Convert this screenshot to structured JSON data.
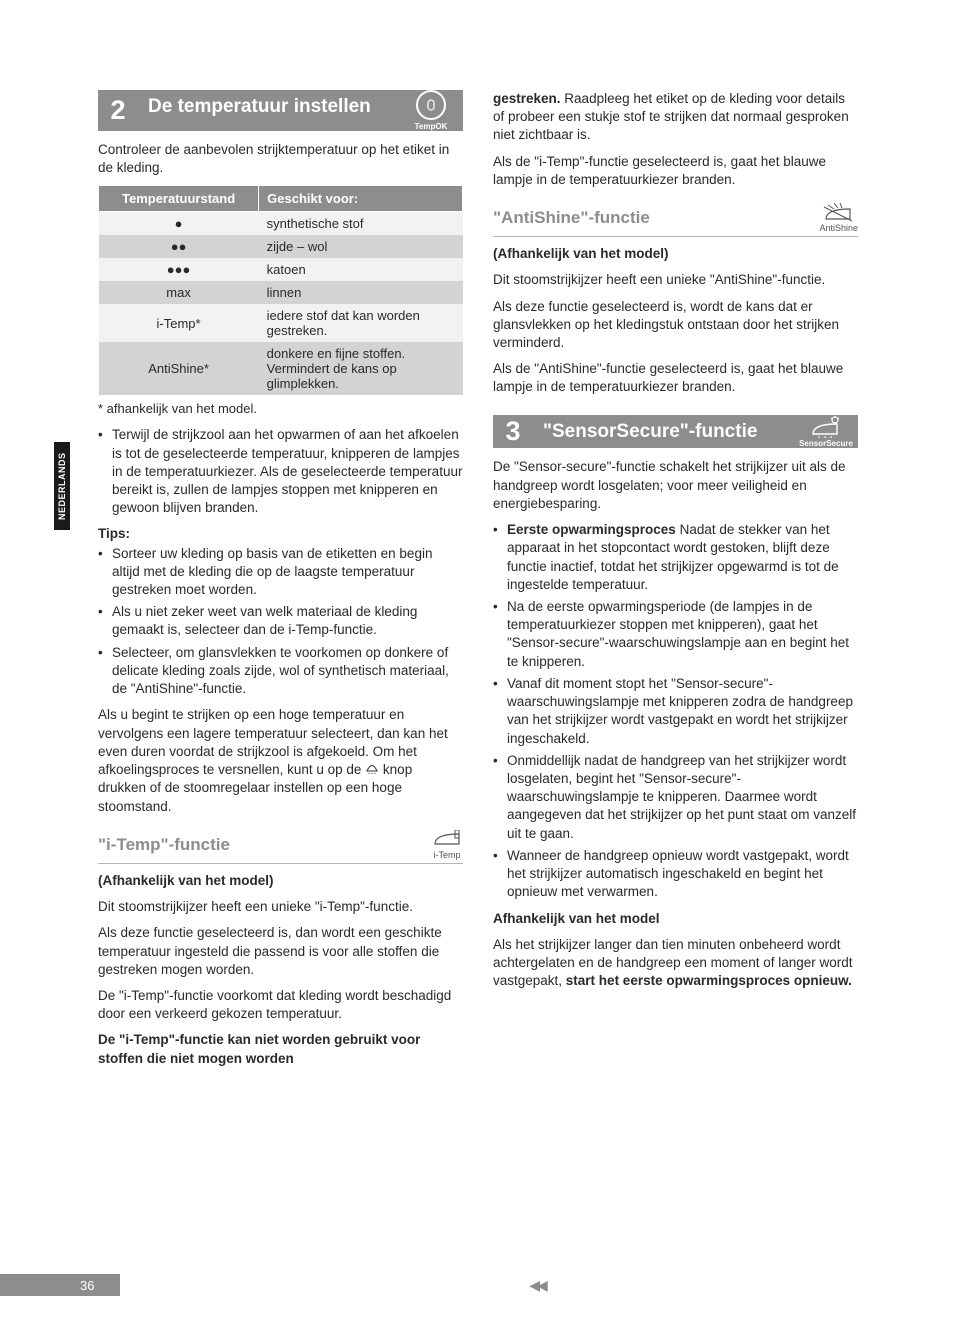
{
  "language_tab": "NEDERLANDS",
  "page_number": "36",
  "footer_arrows": "◀◀",
  "left": {
    "section": {
      "number": "2",
      "title": "De temperatuur instellen",
      "icon_label": "TempOK"
    },
    "intro": "Controleer de aanbevolen strijktemperatuur op het etiket in de kleding.",
    "table": {
      "headers": [
        "Temperatuurstand",
        "Geschikt voor:"
      ],
      "rows": [
        {
          "stand": "●",
          "desc": "synthetische stof",
          "shade": "light"
        },
        {
          "stand": "●●",
          "desc": "zijde – wol",
          "shade": "dark"
        },
        {
          "stand": "●●●",
          "desc": "katoen",
          "shade": "light"
        },
        {
          "stand": "max",
          "desc": "linnen",
          "shade": "dark"
        },
        {
          "stand": "i-Temp*",
          "desc": "iedere stof dat kan worden gestreken.",
          "shade": "light"
        },
        {
          "stand": "AntiShine*",
          "desc": "donkere en fijne stoffen. Vermindert de kans op glimplekken.",
          "shade": "dark"
        }
      ]
    },
    "footnote": "* afhankelijk van het model.",
    "bullet1": "Terwijl de strijkzool aan het opwarmen of aan het afkoelen is tot de geselecteerde temperatuur, knipperen de lampjes in de temperatuurkiezer. Als de geselecteerde temperatuur bereikt is, zullen de lampjes stoppen met knipperen en gewoon blijven branden.",
    "tips_label": "Tips:",
    "tips": [
      "Sorteer uw kleding op basis van de etiketten en begin altijd met de kleding die op de laagste temperatuur gestreken moet worden.",
      "Als u niet zeker weet van welk materiaal de kleding gemaakt is, selecteer dan de i-Temp-functie.",
      "Selecteer, om glansvlekken te voorkomen op donkere of delicate kleding zoals zijde, wol of synthetisch materiaal, de \"AntiShine\"-functie."
    ],
    "cooldown_a": "Als u begint te strijken op een hoge temperatuur en vervolgens een lagere temperatuur selecteert, dan kan het even duren voordat de strijkzool is afgekoeld. Om het afkoelingsproces te versnellen, kunt u op de ",
    "cooldown_b": " knop drukken of de stoomregelaar instellen op een hoge stoomstand.",
    "itemp": {
      "heading": "\"i-Temp\"-functie",
      "icon_label": "i-Temp",
      "depends": "(Afhankelijk van het model)",
      "para1": "Dit stoomstrijkijzer heeft een unieke \"i-Temp\"-functie.",
      "para2": "Als deze functie geselecteerd is, dan wordt een geschikte temperatuur ingesteld die passend is voor alle stoffen die gestreken mogen worden.",
      "para3": "De \"i-Temp\"-functie voorkomt dat kleding wordt beschadigd door een verkeerd gekozen temperatuur.",
      "para4": "De \"i-Temp\"-functie kan niet worden gebruikt voor stoffen die niet mogen worden "
    }
  },
  "right": {
    "cont_bold": "gestreken.",
    "cont_a": " Raadpleeg het etiket op de kleding voor details of probeer een stukje stof te strijken dat normaal gesproken niet zichtbaar is.",
    "cont_b": "Als de \"i-Temp\"-functie geselecteerd is, gaat het blauwe lampje in de temperatuurkiezer branden.",
    "antishine": {
      "heading": "\"AntiShine\"-functie",
      "icon_label": "AntiShine",
      "depends": "(Afhankelijk van het model)",
      "para1": "Dit stoomstrijkijzer heeft een unieke \"AntiShine\"-functie.",
      "para2": "Als deze functie geselecteerd is, wordt de kans dat er glansvlekken op het kledingstuk ontstaan door het strijken verminderd.",
      "para3": "Als de \"AntiShine\"-functie geselecteerd is, gaat het blauwe lampje in de temperatuurkiezer branden."
    },
    "section": {
      "number": "3",
      "title": "\"SensorSecure\"-functie",
      "icon_label": "SensorSecure"
    },
    "ss_intro": "De \"Sensor-secure\"-functie schakelt het strijkijzer uit als de handgreep wordt losgelaten; voor meer veiligheid en energiebesparing.",
    "ss_bullets_label0b": "Eerste opwarmingsproces",
    "ss_bullets_label0": " Nadat de stekker van het apparaat in het stopcontact wordt gestoken, blijft deze functie inactief, totdat het strijkijzer opgewarmd is tot de ingestelde temperatuur.",
    "ss_bullets": [
      "Na de eerste opwarmingsperiode (de lampjes in de temperatuurkiezer stoppen met knipperen), gaat het \"Sensor-secure\"-waarschuwingslampje aan en begint het te knipperen.",
      "Vanaf dit moment stopt het \"Sensor-secure\"-waarschuwingslampje met knipperen zodra de handgreep van het strijkijzer wordt vastgepakt en wordt het strijkijzer ingeschakeld.",
      "Onmiddellijk nadat de handgreep van het strijkijzer wordt losgelaten, begint het \"Sensor-secure\"-waarschuwingslampje te knipperen. Daarmee wordt aangegeven dat het strijkijzer op het punt staat om vanzelf uit te gaan.",
      "Wanneer de handgreep opnieuw wordt vastgepakt, wordt het strijkijzer automatisch ingeschakeld en begint het opnieuw met verwarmen."
    ],
    "ss_depends_label": "Afhankelijk van het model",
    "ss_depends_a": "Als het strijkijzer langer dan tien minuten onbeheerd wordt achtergelaten en de handgreep een moment of langer wordt vastgepakt, ",
    "ss_depends_b": "start het eerste opwarmingsproces opnieuw."
  }
}
